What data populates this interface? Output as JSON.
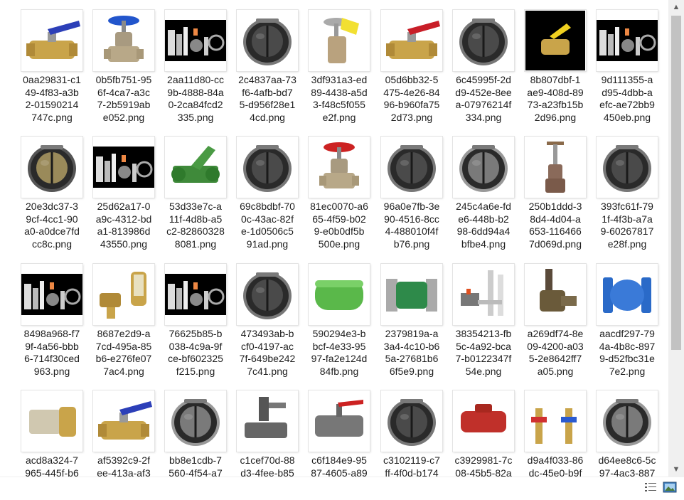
{
  "files": [
    {
      "name": "0aa29831-c1\n49-4f83-a3b\n2-01590214\n747c.png",
      "icon": "brass-ball-valve-blue-handle"
    },
    {
      "name": "0b5fb751-95\n6f-4ca7-a3c\n7-2b5919ab\ne052.png",
      "icon": "gate-valve-blue-wheel"
    },
    {
      "name": "2aa11d80-cc\n9b-4888-84a\n0-2ca84fcd2\n335.png",
      "icon": "product-collage-black"
    },
    {
      "name": "2c4837aa-73\nf6-4afb-bd7\n5-d956f28e1\n4cd.png",
      "icon": "wafer-check-valve"
    },
    {
      "name": "3df931a3-ed\n89-4438-a5d\n3-f48c5f055\ne2f.png",
      "icon": "gate-valve-yellow-tag"
    },
    {
      "name": "05d6bb32-5\n475-4e26-84\n96-b960fa75\n2d73.png",
      "icon": "brass-ball-valve-red-handle"
    },
    {
      "name": "6c45995f-2d\nd9-452e-8ee\na-07976214f\n334.png",
      "icon": "wafer-check-valve"
    },
    {
      "name": "8b807dbf-1\nae9-408d-89\n73-a23fb15b\n2d96.png",
      "icon": "gas-valve-yellow-handle"
    },
    {
      "name": "9d111355-a\nd95-4dbb-a\nefc-ae72bb9\n450eb.png",
      "icon": "product-collage-black"
    },
    {
      "name": "20e3dc37-3\n9cf-4cc1-90\na0-a0dce7fd\ncc8c.png",
      "icon": "wafer-check-valve-brass"
    },
    {
      "name": "25d62a17-0\na9c-4312-bd\na1-813986d\n43550.png",
      "icon": "product-collage-black"
    },
    {
      "name": "53d33e7c-a\n11f-4d8b-a5\nc2-82860328\n8081.png",
      "icon": "green-y-strainer-valve"
    },
    {
      "name": "69c8bdbf-70\n0c-43ac-82f\ne-1d0506c5\n91ad.png",
      "icon": "wafer-check-valve"
    },
    {
      "name": "81ec0070-a6\n65-4f59-b02\n9-e0b0df5b\n500e.png",
      "icon": "gate-valve-red-wheel"
    },
    {
      "name": "96a0e7fb-3e\n90-4516-8cc\n4-488010f4f\nb76.png",
      "icon": "wafer-check-valve"
    },
    {
      "name": "245c4a6e-fd\ne6-448b-b2\n98-6dd94a4\nbfbe4.png",
      "icon": "wafer-check-valve-steel"
    },
    {
      "name": "250b1ddd-3\n8d4-4d04-a\n653-116466\n7d069d.png",
      "icon": "tall-globe-valve"
    },
    {
      "name": "393fc61f-79\n1f-4f3b-a7a\n9-60267817\ne28f.png",
      "icon": "wafer-check-valve"
    },
    {
      "name": "8498a968-f7\n9f-4a56-bbb\n6-714f30ced\n963.png",
      "icon": "product-collage-black"
    },
    {
      "name": "8687e2d9-a\n7cd-495a-85\nb6-e276fe07\n7ac4.png",
      "icon": "brass-regulator-set"
    },
    {
      "name": "76625b85-b\n038-4c9a-9f\nce-bf602325\nf215.png",
      "icon": "product-collage-black"
    },
    {
      "name": "473493ab-b\ncf0-4197-ac\n7f-649be242\n7c41.png",
      "icon": "wafer-check-valve"
    },
    {
      "name": "590294e3-b\nbcf-4e33-95\n97-fa2e124d\n84fb.png",
      "icon": "green-inline-check-valve"
    },
    {
      "name": "2379819a-a\n3a4-4c10-b6\n5a-27681b6\n6f5e9.png",
      "icon": "green-flanged-valve"
    },
    {
      "name": "38354213-fb\n5c-4a92-bca\n7-b0122347f\n54e.png",
      "icon": "pipe-fittings-assortment"
    },
    {
      "name": "a269df74-8e\n09-4200-a03\n5-2e8642ff7\na05.png",
      "icon": "bronze-angle-valve"
    },
    {
      "name": "aacdf297-79\n4a-4b8c-897\n9-d52fbc31e\n7e2.png",
      "icon": "blue-flanged-check-valve"
    },
    {
      "name": "acd8a324-7\n965-445f-b6",
      "icon": "brass-foot-valve-strainer"
    },
    {
      "name": "af5392c9-2f\nee-413a-af3",
      "icon": "brass-ball-valve-blue-handle"
    },
    {
      "name": "bb8e1cdb-7\n560-4f54-a7",
      "icon": "wafer-check-valve-steel"
    },
    {
      "name": "c1cef70d-88\nd3-4fee-b85",
      "icon": "gray-actuated-valve"
    },
    {
      "name": "c6f184e9-95\n87-4605-a89",
      "icon": "gray-flanged-ball-valve"
    },
    {
      "name": "c3102119-c7\nff-4f0d-b174",
      "icon": "wafer-check-valve"
    },
    {
      "name": "c3929981-7c\n08-45b5-82a",
      "icon": "red-inline-check-valve"
    },
    {
      "name": "d9a4f033-86\ndc-45e0-b9f",
      "icon": "brass-manifold-pair"
    },
    {
      "name": "d64ee8c6-5c\n97-4ac3-887",
      "icon": "wafer-check-valve-steel"
    }
  ],
  "statusbar": {
    "details_view_icon": "details-view-icon",
    "thumbnails_view_icon": "large-icons-view-icon"
  },
  "scrollbar": {
    "up_arrow": "▲",
    "down_arrow": "▼"
  }
}
